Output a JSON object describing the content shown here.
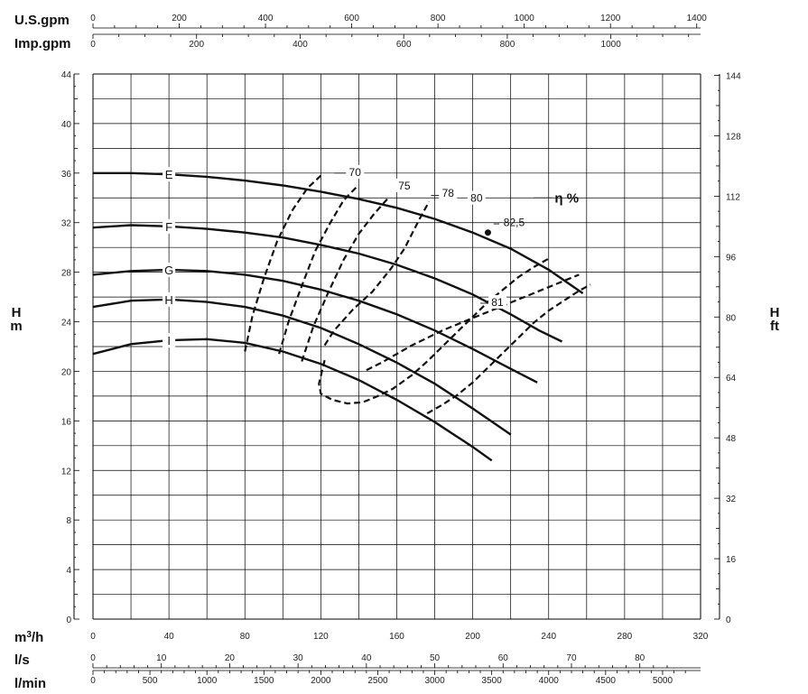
{
  "chart_data": {
    "type": "line",
    "title": "",
    "x_axis": {
      "unit": "m³/h",
      "range": [
        0,
        320
      ],
      "ticks": [
        0,
        40,
        80,
        120,
        160,
        200,
        240,
        280,
        320
      ]
    },
    "y_axis_left": {
      "unit_line1": "H",
      "unit_line2": "m",
      "range": [
        0,
        44
      ],
      "ticks": [
        0,
        4,
        8,
        12,
        16,
        20,
        24,
        28,
        32,
        36,
        40,
        44
      ]
    },
    "y_axis_right": {
      "unit_line1": "H",
      "unit_line2": "ft",
      "ticks": [
        0,
        16,
        32,
        48,
        64,
        80,
        96,
        112,
        128,
        144
      ]
    },
    "secondary_x_axes": [
      {
        "unit": "U.S.gpm",
        "position": "top",
        "ticks": [
          0,
          200,
          400,
          600,
          800,
          1000,
          1200,
          1400
        ]
      },
      {
        "unit": "Imp.gpm",
        "position": "top",
        "ticks": [
          0,
          200,
          400,
          600,
          800,
          1000
        ]
      },
      {
        "unit": "l/s",
        "position": "bottom",
        "ticks": [
          0,
          10,
          20,
          30,
          40,
          50,
          60,
          70,
          80
        ]
      },
      {
        "unit": "l/min",
        "position": "bottom",
        "ticks": [
          0,
          500,
          1000,
          1500,
          2000,
          2500,
          3000,
          3500,
          4000,
          4500,
          5000
        ]
      }
    ],
    "grid": true,
    "series": [
      {
        "name": "E",
        "label_x": 40,
        "x": [
          0,
          20,
          40,
          60,
          80,
          100,
          120,
          140,
          160,
          180,
          200,
          220,
          240,
          258
        ],
        "y": [
          36.0,
          36.0,
          35.9,
          35.7,
          35.4,
          35.0,
          34.5,
          33.9,
          33.2,
          32.3,
          31.2,
          29.9,
          28.2,
          26.3
        ]
      },
      {
        "name": "F",
        "label_x": 40,
        "x": [
          0,
          20,
          40,
          60,
          80,
          100,
          120,
          140,
          160,
          180,
          200,
          220,
          235,
          247
        ],
        "y": [
          31.6,
          31.8,
          31.7,
          31.5,
          31.2,
          30.8,
          30.2,
          29.5,
          28.6,
          27.5,
          26.2,
          24.6,
          23.3,
          22.4
        ]
      },
      {
        "name": "G",
        "label_x": 40,
        "x": [
          0,
          20,
          40,
          60,
          80,
          100,
          120,
          140,
          160,
          180,
          200,
          220,
          234
        ],
        "y": [
          27.8,
          28.1,
          28.2,
          28.1,
          27.8,
          27.3,
          26.6,
          25.7,
          24.6,
          23.3,
          21.8,
          20.2,
          19.1
        ]
      },
      {
        "name": "H",
        "label_x": 40,
        "x": [
          0,
          20,
          40,
          60,
          80,
          100,
          120,
          140,
          160,
          180,
          200,
          220
        ],
        "y": [
          25.2,
          25.7,
          25.8,
          25.6,
          25.2,
          24.5,
          23.5,
          22.2,
          20.7,
          19.0,
          17.0,
          14.9
        ]
      },
      {
        "name": "I",
        "label_x": 40,
        "x": [
          0,
          20,
          40,
          60,
          80,
          100,
          120,
          140,
          160,
          180,
          200,
          210
        ],
        "y": [
          21.4,
          22.2,
          22.5,
          22.6,
          22.3,
          21.6,
          20.6,
          19.3,
          17.7,
          15.9,
          13.9,
          12.8
        ]
      }
    ],
    "efficiency_curves": [
      {
        "label": "70",
        "label_at": [
          138,
          36.0
        ],
        "x": [
          80,
          84,
          90,
          97,
          105,
          113,
          120
        ],
        "y": [
          21.6,
          24.5,
          27.5,
          30.5,
          33.0,
          34.8,
          35.8
        ]
      },
      {
        "label": "75",
        "label_at": [
          164,
          34.9
        ],
        "x": [
          98,
          103,
          110,
          117,
          125,
          132,
          139
        ],
        "y": [
          21.4,
          24.0,
          26.9,
          29.7,
          32.0,
          33.8,
          34.9
        ]
      },
      {
        "label": "78",
        "label_at": [
          187,
          34.3
        ],
        "x": [
          110,
          116,
          124,
          132,
          140,
          148,
          155
        ],
        "y": [
          20.8,
          23.6,
          26.4,
          29.0,
          31.1,
          32.7,
          33.9
        ]
      },
      {
        "label": "80",
        "label_at": [
          202,
          33.9
        ],
        "x": [
          122,
          127,
          137,
          147,
          157,
          164,
          168,
          172,
          177
        ],
        "y": [
          22.1,
          23.3,
          25.0,
          26.4,
          28.3,
          29.9,
          31.1,
          32.3,
          33.7
        ]
      },
      {
        "label": "81",
        "label_at": [
          213,
          25.5
        ],
        "x": [
          144,
          152,
          160,
          168,
          176,
          184,
          192,
          200,
          208,
          216,
          224,
          232,
          240,
          248,
          256
        ],
        "y": [
          20.1,
          20.7,
          21.4,
          22.1,
          22.7,
          23.3,
          23.8,
          24.3,
          24.8,
          25.3,
          25.8,
          26.3,
          26.8,
          27.3,
          27.8
        ]
      },
      {
        "label": "",
        "label_at": null,
        "x": [
          122,
          119,
          120,
          126,
          134,
          142,
          150,
          158,
          168,
          176,
          184,
          192,
          200,
          208,
          216,
          224,
          232,
          240
        ],
        "y": [
          20.9,
          19.0,
          18.2,
          17.7,
          17.4,
          17.5,
          18.0,
          18.6,
          19.7,
          20.8,
          22.0,
          23.2,
          24.4,
          25.6,
          26.6,
          27.6,
          28.4,
          29.1
        ]
      },
      {
        "label": "",
        "label_at": null,
        "x": [
          176,
          184,
          192,
          200,
          208,
          216,
          224,
          232,
          240,
          248,
          256,
          262
        ],
        "y": [
          16.6,
          17.3,
          18.1,
          19.1,
          20.3,
          21.5,
          22.7,
          23.9,
          24.9,
          25.7,
          26.5,
          27.0
        ]
      }
    ],
    "eta_label": "η %",
    "eta_label_at": [
      240,
      34.0
    ],
    "bep": {
      "label": "82,5",
      "x": 208,
      "y": 31.2,
      "label_at": [
        218,
        32.0
      ]
    },
    "guide_segments": [
      {
        "x": [
          232,
          242
        ],
        "y": [
          34.0,
          34.0
        ]
      },
      {
        "x": [
          127,
          135
        ],
        "y": [
          36.0,
          36.0
        ]
      },
      {
        "x": [
          178,
          183
        ],
        "y": [
          34.2,
          34.2
        ]
      },
      {
        "x": [
          211,
          214
        ],
        "y": [
          31.9,
          31.9
        ]
      },
      {
        "x": [
          204,
          208
        ],
        "y": [
          25.5,
          25.5
        ]
      }
    ]
  },
  "colors": {
    "curve": "#111111",
    "grid": "#000000",
    "background": "#ffffff"
  }
}
